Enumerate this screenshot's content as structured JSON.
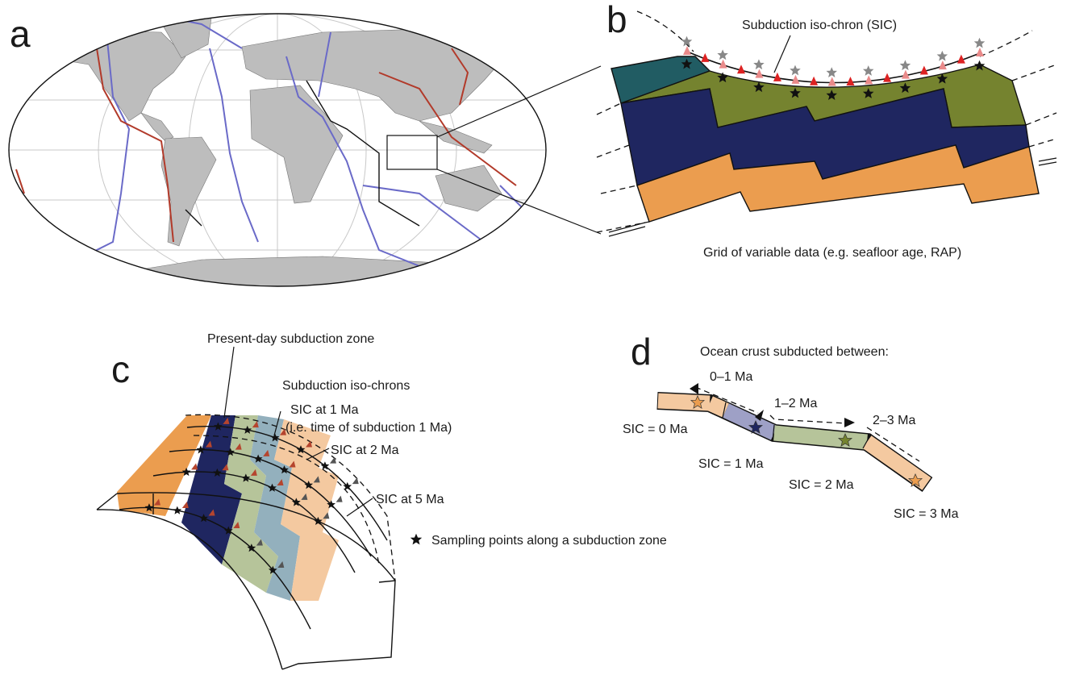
{
  "panels": {
    "a": {
      "label": "a"
    },
    "b": {
      "label": "b",
      "title": "Subduction iso-chron (SIC)",
      "caption": "Grid of variable data (e.g. seafloor age, RAP)"
    },
    "c": {
      "label": "c",
      "labels": [
        "Present-day subduction zone",
        "Subduction iso-chrons",
        "SIC at 1 Ma",
        "(i.e. time of subduction 1 Ma)",
        "SIC at 2 Ma",
        "SIC at 5 Ma"
      ],
      "legend": "Sampling points along a subduction zone"
    },
    "d": {
      "label": "d",
      "title": "Ocean crust subducted between:",
      "intervals": [
        "0–1 Ma",
        "1–2 Ma",
        "2–3 Ma"
      ],
      "isochrons": [
        "SIC = 0 Ma",
        "SIC = 1 Ma",
        "SIC = 2 Ma",
        "SIC = 3 Ma"
      ]
    }
  }
}
